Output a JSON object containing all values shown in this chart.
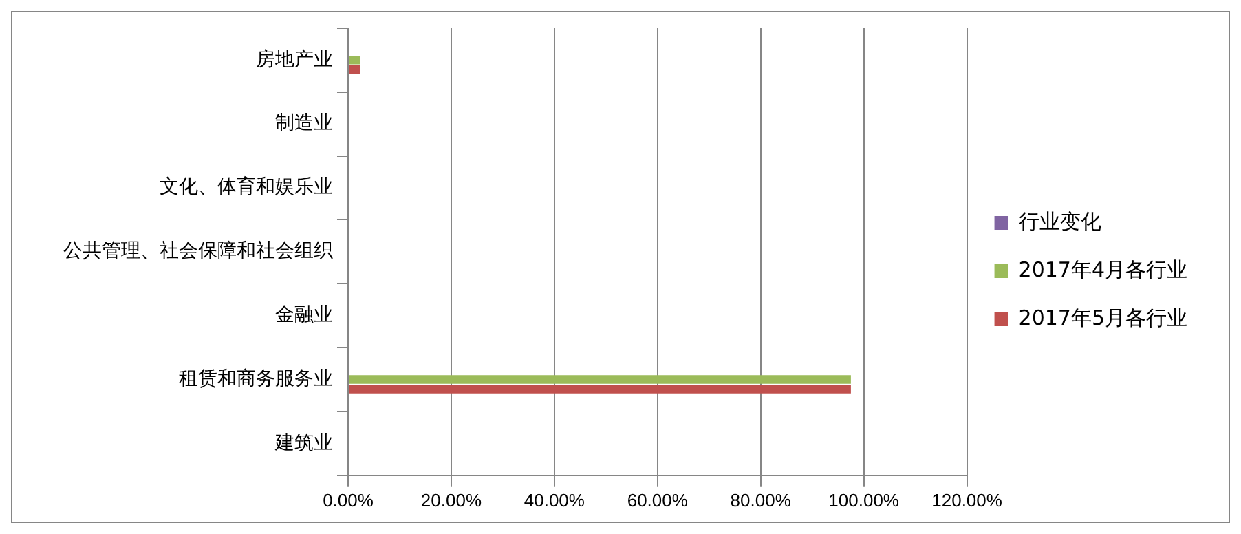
{
  "chart_data": {
    "type": "bar",
    "orientation": "horizontal",
    "categories": [
      "房地产业",
      "制造业",
      "文化、体育和娱乐业",
      "公共管理、社会保障和社会组织",
      "金融业",
      "租赁和商务服务业",
      "建筑业"
    ],
    "series": [
      {
        "name": "行业变化",
        "color": "#8064a2",
        "values": [
          0,
          0,
          0,
          0,
          0,
          0,
          0
        ]
      },
      {
        "name": "2017年4月各行业",
        "color": "#9bbb59",
        "values": [
          0.024,
          0,
          0,
          0,
          0,
          0.975,
          0
        ]
      },
      {
        "name": "2017年5月各行业",
        "color": "#c0504d",
        "values": [
          0.024,
          0,
          0,
          0,
          0,
          0.975,
          0
        ]
      }
    ],
    "xlim": [
      0,
      1.2
    ],
    "xticks": [
      {
        "value": 0,
        "label": "0.00%"
      },
      {
        "value": 0.2,
        "label": "20.00%"
      },
      {
        "value": 0.4,
        "label": "40.00%"
      },
      {
        "value": 0.6,
        "label": "60.00%"
      },
      {
        "value": 0.8,
        "label": "80.00%"
      },
      {
        "value": 1,
        "label": "100.00%"
      },
      {
        "value": 1.2,
        "label": "120.00%"
      }
    ],
    "grid": "x",
    "legend": "right"
  }
}
